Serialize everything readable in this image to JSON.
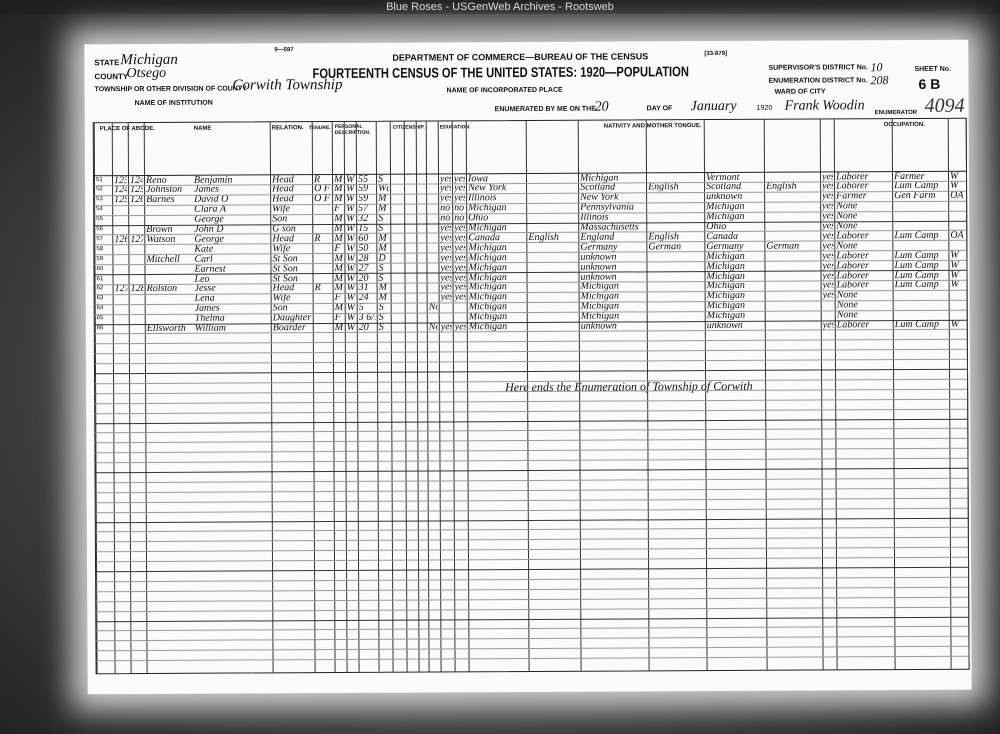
{
  "banner": "Blue Roses - USGenWeb Archives - Rootsweb",
  "header": {
    "form_no": "9—597",
    "department": "DEPARTMENT OF COMMERCE—BUREAU OF THE CENSUS",
    "title": "FOURTEENTH CENSUS OF THE UNITED STATES: 1920—POPULATION",
    "form_code": "[33-879]",
    "state_label": "STATE",
    "state": "Michigan",
    "county_label": "COUNTY",
    "county": "Otsego",
    "township_label": "TOWNSHIP OR OTHER DIVISION OF COUNTY",
    "township": "Corwith Township",
    "institution_label": "NAME OF INSTITUTION",
    "incorporated_label": "NAME OF INCORPORATED PLACE",
    "enumerated_label": "ENUMERATED BY ME ON THE",
    "enumerated_day": "20",
    "day_of": "DAY OF",
    "month": "January",
    "year": "1920",
    "enumerator": "Frank Woodin",
    "enumerator_label": "ENUMERATOR",
    "ward_label": "WARD OF CITY",
    "supervisor_label": "SUPERVISOR'S DISTRICT No.",
    "supervisor": "10",
    "ed_label": "ENUMERATION DISTRICT No.",
    "ed": "208",
    "sheet_label": "SHEET No.",
    "sheet": "6 B",
    "stamp": "4094"
  },
  "sections": {
    "place": "PLACE OF ABODE.",
    "name": "NAME",
    "relation": "RELATION.",
    "tenure": "TENURE.",
    "personal": "PERSONAL DESCRIPTION.",
    "citizenship": "CITIZENSHIP.",
    "education": "EDUCATION.",
    "nativity": "NATIVITY AND MOTHER TONGUE.",
    "occupation": "OCCUPATION."
  },
  "rows": [
    {
      "line": "51",
      "dwelling": "123",
      "family": "124",
      "surname": "Reno",
      "given": "Benjamin",
      "relation": "Head",
      "tenure": "R",
      "sex": "M",
      "race": "W",
      "age": "55",
      "marital": "S",
      "read": "yes",
      "write": "yes",
      "birthplace": "Iowa",
      "f_birth": "Michigan",
      "m_birth": "Vermont",
      "english": "yes",
      "occupation": "Laborer",
      "industry": "Farmer",
      "class": "W"
    },
    {
      "line": "52",
      "dwelling": "124",
      "family": "125",
      "surname": "Johnston",
      "given": "James",
      "relation": "Head",
      "tenure": "O F",
      "sex": "M",
      "race": "W",
      "age": "59",
      "marital": "Wd",
      "read": "yes",
      "write": "yes",
      "birthplace": "New York",
      "f_birth": "Scotland",
      "f_tongue": "English",
      "m_birth": "Scotland",
      "m_tongue": "English",
      "english": "yes",
      "occupation": "Laborer",
      "industry": "Lum Camp",
      "class": "W"
    },
    {
      "line": "53",
      "dwelling": "125",
      "family": "126",
      "surname": "Barnes",
      "given": "David O",
      "relation": "Head",
      "tenure": "O F",
      "sex": "M",
      "race": "W",
      "age": "59",
      "marital": "M",
      "read": "yes",
      "write": "yes",
      "birthplace": "Illinois",
      "f_birth": "New York",
      "m_birth": "unknown",
      "english": "yes",
      "occupation": "Farmer",
      "industry": "Gen Farm",
      "class": "OA"
    },
    {
      "line": "54",
      "given": "Clara A",
      "relation": "Wife",
      "sex": "F",
      "race": "W",
      "age": "57",
      "marital": "M",
      "read": "no",
      "write": "no",
      "birthplace": "Michigan",
      "f_birth": "Pennsylvania",
      "m_birth": "Michigan",
      "english": "yes",
      "occupation": "None"
    },
    {
      "line": "55",
      "given": "George",
      "relation": "Son",
      "sex": "M",
      "race": "W",
      "age": "32",
      "marital": "S",
      "read": "no",
      "write": "no",
      "birthplace": "Ohio",
      "f_birth": "Illinois",
      "m_birth": "Michigan",
      "english": "yes",
      "occupation": "None"
    },
    {
      "line": "56",
      "surname": "Brown",
      "given": "John D",
      "relation": "G son",
      "sex": "M",
      "race": "W",
      "age": "15",
      "marital": "S",
      "read": "yes",
      "write": "yes",
      "birthplace": "Michigan",
      "f_birth": "Massachusetts",
      "m_birth": "Ohio",
      "english": "yes",
      "occupation": "None"
    },
    {
      "line": "57",
      "dwelling": "126",
      "family": "127",
      "surname": "Watson",
      "given": "George",
      "relation": "Head",
      "tenure": "R",
      "sex": "M",
      "race": "W",
      "age": "60",
      "marital": "M",
      "read": "yes",
      "write": "yes",
      "birthplace": "Canada",
      "tongue": "English",
      "f_birth": "England",
      "f_tongue": "English",
      "m_birth": "Canada",
      "english": "yes",
      "occupation": "Laborer",
      "industry": "Lum Camp",
      "class": "OA"
    },
    {
      "line": "58",
      "given": "Kate",
      "relation": "Wife",
      "sex": "F",
      "race": "W",
      "age": "50",
      "marital": "M",
      "read": "yes",
      "write": "yes",
      "birthplace": "Michigan",
      "f_birth": "Germany",
      "f_tongue": "German",
      "m_birth": "Germany",
      "m_tongue": "German",
      "english": "yes",
      "occupation": "None"
    },
    {
      "line": "59",
      "surname": "Mitchell",
      "given": "Carl",
      "relation": "St Son",
      "sex": "M",
      "race": "W",
      "age": "28",
      "marital": "D",
      "read": "yes",
      "write": "yes",
      "birthplace": "Michigan",
      "f_birth": "unknown",
      "m_birth": "Michigan",
      "english": "yes",
      "occupation": "Laborer",
      "industry": "Lum Camp",
      "class": "W"
    },
    {
      "line": "60",
      "given": "Earnest",
      "relation": "St Son",
      "sex": "M",
      "race": "W",
      "age": "27",
      "marital": "S",
      "read": "yes",
      "write": "yes",
      "birthplace": "Michigan",
      "f_birth": "unknown",
      "m_birth": "Michigan",
      "english": "yes",
      "occupation": "Laborer",
      "industry": "Lum Camp",
      "class": "W"
    },
    {
      "line": "61",
      "given": "Leo",
      "relation": "St Son",
      "sex": "M",
      "race": "W",
      "age": "20",
      "marital": "S",
      "read": "yes",
      "write": "yes",
      "birthplace": "Michigan",
      "f_birth": "unknown",
      "m_birth": "Michigan",
      "english": "yes",
      "occupation": "Laborer",
      "industry": "Lum Camp",
      "class": "W"
    },
    {
      "line": "62",
      "dwelling": "127",
      "family": "128",
      "surname": "Rolston",
      "given": "Jesse",
      "relation": "Head",
      "tenure": "R",
      "sex": "M",
      "race": "W",
      "age": "31",
      "marital": "M",
      "read": "yes",
      "write": "yes",
      "birthplace": "Michigan",
      "f_birth": "Michigan",
      "m_birth": "Michigan",
      "english": "yes",
      "occupation": "Laborer",
      "industry": "Lum Camp",
      "class": "W"
    },
    {
      "line": "63",
      "given": "Lena",
      "relation": "Wife",
      "sex": "F",
      "race": "W",
      "age": "24",
      "marital": "M",
      "read": "yes",
      "write": "yes",
      "birthplace": "Michigan",
      "f_birth": "Michigan",
      "m_birth": "Michigan",
      "english": "yes",
      "occupation": "None"
    },
    {
      "line": "64",
      "given": "James",
      "relation": "Son",
      "sex": "M",
      "race": "W",
      "age": "5",
      "marital": "S",
      "school": "No",
      "birthplace": "Michigan",
      "f_birth": "Michigan",
      "m_birth": "Michigan",
      "occupation": "None"
    },
    {
      "line": "65",
      "given": "Thelma",
      "relation": "Daughter",
      "sex": "F",
      "race": "W",
      "age": "3 6/12",
      "marital": "S",
      "birthplace": "Michigan",
      "f_birth": "Michigan",
      "m_birth": "Michigan",
      "occupation": "None"
    },
    {
      "line": "66",
      "surname": "Ellsworth",
      "given": "William",
      "relation": "Boarder",
      "sex": "M",
      "race": "W",
      "age": "20",
      "marital": "S",
      "school": "No",
      "read": "yes",
      "write": "yes",
      "birthplace": "Michigan",
      "f_birth": "unknown",
      "m_birth": "unknown",
      "english": "yes",
      "occupation": "Laborer",
      "industry": "Lum Camp",
      "class": "W"
    }
  ],
  "end_note": "Here ends the Enumeration of Township of Corwith"
}
